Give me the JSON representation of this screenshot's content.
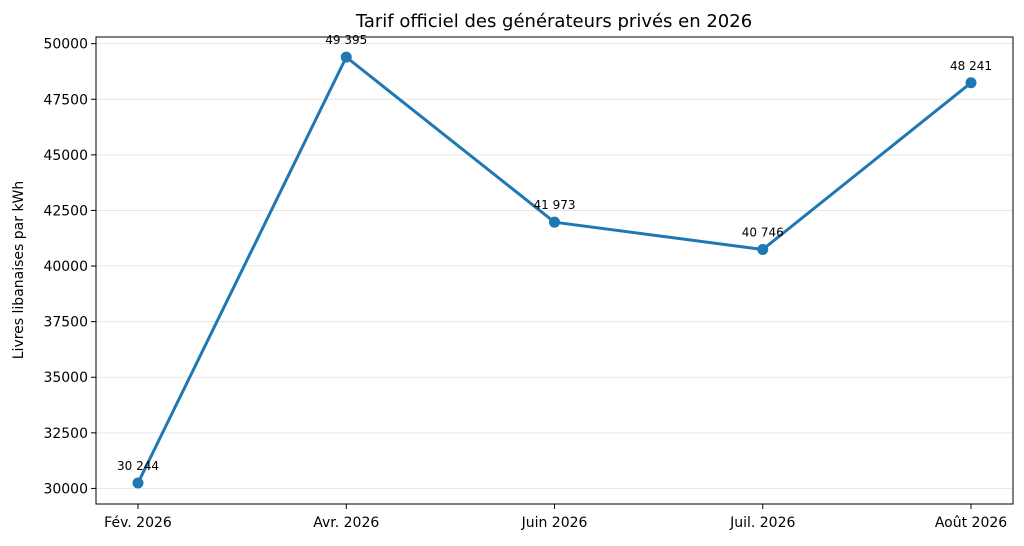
{
  "chart_data": {
    "type": "line",
    "title": "Tarif officiel des générateurs privés en 2026",
    "ylabel": "Livres libanaises par kWh",
    "xlabel": "",
    "categories": [
      "Fév. 2026",
      "Avr. 2026",
      "Juin 2026",
      "Juil. 2026",
      "Août 2026"
    ],
    "series": [
      {
        "values": [
          30244,
          49395,
          41973,
          40746,
          48241
        ],
        "data_labels": [
          "30 244",
          "49 395",
          "41 973",
          "40 746",
          "48 241"
        ],
        "color": "#1f77b4"
      }
    ],
    "ylim": [
      29300,
      50300
    ],
    "yticks": [
      30000,
      32500,
      35000,
      37500,
      40000,
      42500,
      45000,
      47500,
      50000
    ],
    "ytick_labels": [
      "30000",
      "32500",
      "35000",
      "37500",
      "40000",
      "42500",
      "45000",
      "47500",
      "50000"
    ],
    "grid": "horizontal",
    "legend": "none"
  }
}
